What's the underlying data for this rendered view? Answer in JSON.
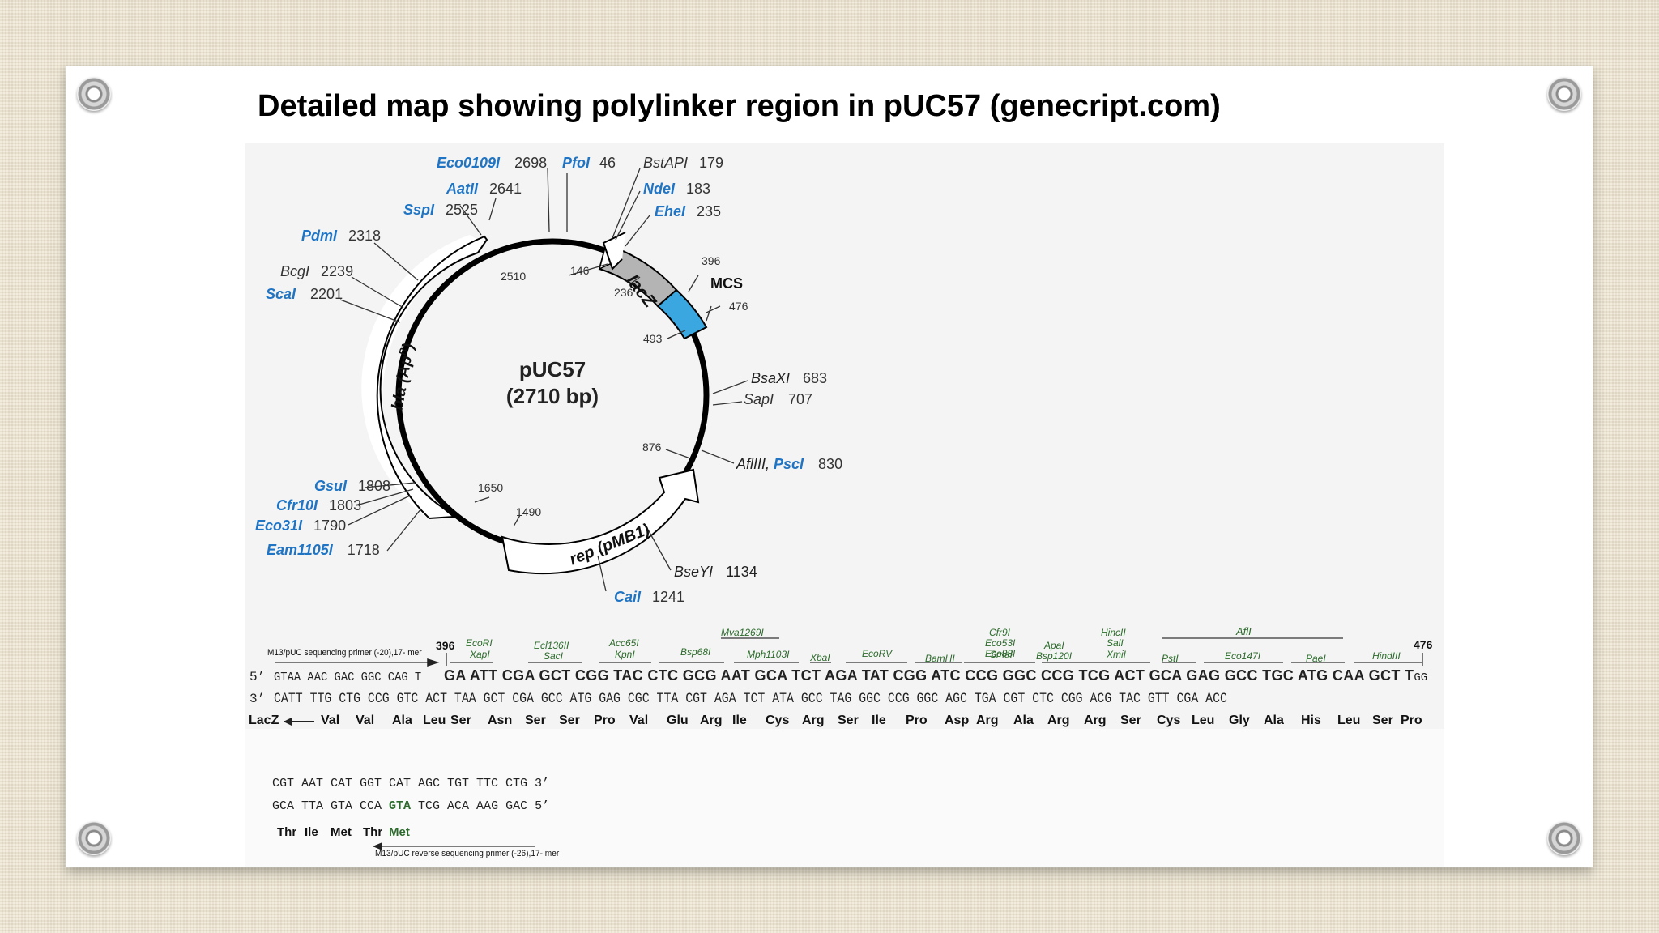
{
  "title": "Detailed map showing polylinker region in pUC57 (genecript.com)",
  "plasmid": {
    "name": "pUC57",
    "size": "(2710 bp)",
    "features": {
      "lacz": "lacZ",
      "mcs": "MCS",
      "bla_main": "bla (Ap",
      "bla_sup": "R",
      "bla_close": ")",
      "rep": "rep (pMB1)"
    },
    "inner_numbers": {
      "n2510": "2510",
      "n146": "146",
      "n236": "236",
      "n396": "396",
      "n476": "476",
      "n493": "493",
      "n876": "876",
      "n1650": "1650",
      "n1490": "1490"
    },
    "sites": {
      "eco0109": {
        "name": "Eco0109I",
        "pos": "2698",
        "color": "#1f74c3"
      },
      "pfo": {
        "name": "PfoI",
        "pos": "46",
        "color": "#1f74c3"
      },
      "bstap": {
        "name": "BstAPI",
        "pos": "179",
        "color": "#333333"
      },
      "aat": {
        "name": "AatII",
        "pos": "2641",
        "color": "#1f74c3"
      },
      "nde": {
        "name": "NdeI",
        "pos": "183",
        "color": "#1f74c3"
      },
      "ssp": {
        "name": "SspI",
        "pos": "2525",
        "color": "#1f74c3"
      },
      "ehe": {
        "name": "EheI",
        "pos": "235",
        "color": "#1f74c3"
      },
      "pdm": {
        "name": "PdmI",
        "pos": "2318",
        "color": "#1f74c3"
      },
      "bcg": {
        "name": "BcgI",
        "pos": "2239",
        "color": "#333333"
      },
      "sca": {
        "name": "ScaI",
        "pos": "2201",
        "color": "#1f74c3"
      },
      "bsax": {
        "name": "BsaXI",
        "pos": "683",
        "color": "#333333"
      },
      "sap": {
        "name": "SapI",
        "pos": "707",
        "color": "#333333"
      },
      "afl3": {
        "name": "AflIII, ",
        "name2": "PscI",
        "pos": "830",
        "color": "#1f74c3"
      },
      "gsu": {
        "name": "GsuI",
        "pos": "1808",
        "color": "#1f74c3"
      },
      "cfr10": {
        "name": "Cfr10I",
        "pos": "1803",
        "color": "#1f74c3"
      },
      "eco31": {
        "name": "Eco31I",
        "pos": "1790",
        "color": "#1f74c3"
      },
      "eam1105": {
        "name": "Eam1105I",
        "pos": "1718",
        "color": "#1f74c3"
      },
      "bsey": {
        "name": "BseYI",
        "pos": "1134",
        "color": "#333333"
      },
      "cai": {
        "name": "CaiI",
        "pos": "1241",
        "color": "#1f74c3"
      }
    }
  },
  "polylinker": {
    "fwd_primer": "M13/pUC sequencing primer (-20),17- mer",
    "pos_start": "396",
    "pos_end": "476",
    "enzymes_top": {
      "mva": "Mva1269I",
      "cfr9": "Cfr9I",
      "hinc": "HincII",
      "afl2": "AflI"
    },
    "enzymes_mid": {
      "eco53": "Eco53I",
      "sal": "SalI"
    },
    "enzymes_row1": {
      "ecor1": "EcoRI",
      "ecl136": "Ecl136II",
      "acc65": "Acc65I",
      "bsp68": "Bsp68I",
      "mph1103": "Mph1103I",
      "xba": "XbaI",
      "ecorv": "EcoRV",
      "bamh": "BamHI",
      "eco88": "Eco88I",
      "apa": "ApaI",
      "pst": "PstI",
      "eco147": "Eco147I",
      "pae": "PaeI",
      "hind3": "HindIII"
    },
    "enzymes_row2": {
      "xap": "XapI",
      "sac": "SacI",
      "kpn": "KpnI",
      "sma": "SmaI",
      "bsp120": "Bsp120I",
      "xmi": "XmiI"
    },
    "strand5_label": "5’",
    "strand5_lead": "GTAA AAC GAC GGC CAG T",
    "strand5_main": "GA ATT CGA GCT CGG TAC CTC GCG AAT GCA TCT AGA TAT CGG ATC CCG GGC CCG TCG ACT GCA GAG GCC TGC ATG CAA GCT T",
    "strand5_tail": "GG",
    "strand3_label": "3’",
    "strand3_seq": "CATT TTG CTG CCG GTC ACT TAA GCT CGA GCC ATG GAG CGC TTA CGT AGA TCT ATA GCC TAG GGC CCG GGC AGC TGA CGT CTC CGG ACG TAC GTT CGA ACC",
    "aa_label": "LacZ",
    "aa": [
      "Val",
      "Val",
      "Ala",
      "Leu",
      "Ser",
      "Asn",
      "Ser",
      "Ser",
      "Pro",
      "Val",
      "Glu",
      "Arg",
      "Ile",
      "Cys",
      "Arg",
      "Ser",
      "Ile",
      "Pro",
      "Asp",
      "Arg",
      "Ala",
      "Arg",
      "Arg",
      "Ser",
      "Cys",
      "Leu",
      "Gly",
      "Ala",
      "His",
      "Leu",
      "Ser",
      "Pro"
    ],
    "cont_line1": "CGT AAT CAT GGT CAT AGC TGT TTC CTG 3’",
    "cont_line2_a": "GCA TTA GTA CCA ",
    "cont_line2_b": "GTA",
    "cont_line2_c": " TCG ACA AAG GAC 5’",
    "cont_aa": [
      "Thr",
      "Ile",
      "Met",
      "Thr",
      "Met"
    ],
    "rev_primer": "M13/pUC reverse sequencing primer (-26),17- mer"
  }
}
